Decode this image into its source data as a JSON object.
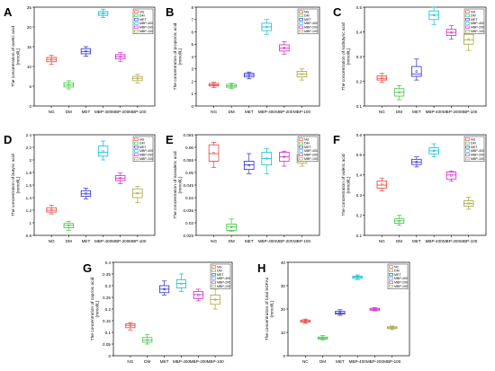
{
  "chart_data": [
    {
      "type": "box",
      "panel": "A",
      "ylabel": "The concentration of acetic acid (mmol/L)",
      "categories": [
        "NG",
        "DM",
        "MET",
        "MBP-400",
        "MBP-200",
        "MBP-100"
      ],
      "legend": [
        "NG",
        "DM",
        "MET",
        "MBP-400",
        "MBP-200",
        "MBP-100"
      ],
      "ylim": [
        0,
        25
      ],
      "yticks": [
        0,
        5,
        10,
        15,
        20,
        25
      ],
      "boxes": [
        {
          "min": 10.5,
          "q1": 11.2,
          "median": 11.8,
          "q3": 12.3,
          "max": 12.8
        },
        {
          "min": 4.3,
          "q1": 4.8,
          "median": 5.3,
          "q3": 5.9,
          "max": 6.4
        },
        {
          "min": 12.6,
          "q1": 13.2,
          "median": 13.8,
          "q3": 14.5,
          "max": 15.0
        },
        {
          "min": 22.4,
          "q1": 22.9,
          "median": 23.4,
          "q3": 23.9,
          "max": 24.5
        },
        {
          "min": 11.3,
          "q1": 11.9,
          "median": 12.5,
          "q3": 13.0,
          "max": 13.5
        },
        {
          "min": 5.8,
          "q1": 6.4,
          "median": 7.0,
          "q3": 7.5,
          "max": 8.0
        }
      ]
    },
    {
      "type": "box",
      "panel": "B",
      "ylabel": "The concentration of propionic acid (mmol/L)",
      "categories": [
        "NG",
        "DM",
        "MET",
        "MBP-400",
        "MBP-200",
        "MBP-100"
      ],
      "legend": [
        "NG",
        "DM",
        "MET",
        "MBP-400",
        "MBP-200",
        "MBP-100"
      ],
      "ylim": [
        0,
        8
      ],
      "yticks": [
        0,
        1,
        2,
        3,
        4,
        5,
        6,
        7,
        8
      ],
      "boxes": [
        {
          "min": 1.5,
          "q1": 1.62,
          "median": 1.72,
          "q3": 1.82,
          "max": 1.92
        },
        {
          "min": 1.4,
          "q1": 1.52,
          "median": 1.62,
          "q3": 1.75,
          "max": 1.85
        },
        {
          "min": 2.2,
          "q1": 2.35,
          "median": 2.5,
          "q3": 2.65,
          "max": 2.75
        },
        {
          "min": 5.8,
          "q1": 6.1,
          "median": 6.4,
          "q3": 6.7,
          "max": 7.0
        },
        {
          "min": 4.2,
          "q1": 4.45,
          "median": 4.7,
          "q3": 4.95,
          "max": 5.2
        },
        {
          "min": 2.1,
          "q1": 2.35,
          "median": 2.6,
          "q3": 2.8,
          "max": 3.0
        }
      ]
    },
    {
      "type": "box",
      "panel": "C",
      "ylabel": "The concentration of isobutyric acid (mmol/L)",
      "categories": [
        "NG",
        "DM",
        "MET",
        "MBP-400",
        "MBP-200",
        "MBP-100"
      ],
      "legend": [
        "NG",
        "DM",
        "MET",
        "MBP-400",
        "MBP-200",
        "MBP-100"
      ],
      "ylim": [
        0.1,
        0.5
      ],
      "yticks": [
        0.1,
        0.2,
        0.3,
        0.4,
        0.5
      ],
      "boxes": [
        {
          "min": 0.195,
          "q1": 0.205,
          "median": 0.212,
          "q3": 0.222,
          "max": 0.232
        },
        {
          "min": 0.125,
          "q1": 0.14,
          "median": 0.155,
          "q3": 0.17,
          "max": 0.182
        },
        {
          "min": 0.205,
          "q1": 0.22,
          "median": 0.23,
          "q3": 0.26,
          "max": 0.29
        },
        {
          "min": 0.43,
          "q1": 0.45,
          "median": 0.468,
          "q3": 0.485,
          "max": 0.5
        },
        {
          "min": 0.37,
          "q1": 0.385,
          "median": 0.398,
          "q3": 0.41,
          "max": 0.425
        },
        {
          "min": 0.325,
          "q1": 0.35,
          "median": 0.368,
          "q3": 0.39,
          "max": 0.41
        }
      ]
    },
    {
      "type": "box",
      "panel": "D",
      "ylabel": "The concentration of butyric acid (mmol/L)",
      "categories": [
        "NG",
        "DM",
        "MET",
        "MBP-400",
        "MBP-200",
        "MBP-100"
      ],
      "legend": [
        "NG",
        "DM",
        "MET",
        "MBP-400",
        "MBP-200",
        "MBP-100"
      ],
      "ylim": [
        0.8,
        2.4
      ],
      "yticks": [
        0.8,
        1.0,
        1.2,
        1.4,
        1.6,
        1.8,
        2.0,
        2.2,
        2.4
      ],
      "boxes": [
        {
          "min": 1.14,
          "q1": 1.17,
          "median": 1.2,
          "q3": 1.24,
          "max": 1.28
        },
        {
          "min": 0.88,
          "q1": 0.92,
          "median": 0.96,
          "q3": 0.99,
          "max": 1.02
        },
        {
          "min": 1.38,
          "q1": 1.42,
          "median": 1.46,
          "q3": 1.51,
          "max": 1.55
        },
        {
          "min": 2.0,
          "q1": 2.06,
          "median": 2.12,
          "q3": 2.22,
          "max": 2.3
        },
        {
          "min": 1.62,
          "q1": 1.67,
          "median": 1.71,
          "q3": 1.75,
          "max": 1.79
        },
        {
          "min": 1.32,
          "q1": 1.4,
          "median": 1.47,
          "q3": 1.54,
          "max": 1.58
        }
      ]
    },
    {
      "type": "box",
      "panel": "E",
      "ylabel": "The concentration of isovaleric acid (mmol/L)",
      "categories": [
        "NG",
        "DM",
        "MET",
        "MBP-400",
        "MBP-200",
        "MBP-100"
      ],
      "legend": [
        "NG",
        "DM",
        "MET",
        "MBP-400",
        "MBP-200",
        "MBP-100"
      ],
      "ylim": [
        0.025,
        0.065
      ],
      "yticks": [
        0.025,
        0.03,
        0.035,
        0.04,
        0.045,
        0.05,
        0.055,
        0.06,
        0.065
      ],
      "boxes": [
        {
          "min": 0.052,
          "q1": 0.0545,
          "median": 0.0575,
          "q3": 0.061,
          "max": 0.062
        },
        {
          "min": 0.0265,
          "q1": 0.027,
          "median": 0.0283,
          "q3": 0.0295,
          "max": 0.0315
        },
        {
          "min": 0.0495,
          "q1": 0.0512,
          "median": 0.053,
          "q3": 0.0545,
          "max": 0.0575
        },
        {
          "min": 0.0495,
          "q1": 0.053,
          "median": 0.0555,
          "q3": 0.058,
          "max": 0.0595
        },
        {
          "min": 0.0525,
          "q1": 0.0545,
          "median": 0.0562,
          "q3": 0.058,
          "max": 0.0585
        },
        {
          "min": 0.0525,
          "q1": 0.0538,
          "median": 0.0553,
          "q3": 0.057,
          "max": 0.058
        }
      ]
    },
    {
      "type": "box",
      "panel": "F",
      "ylabel": "The concentration of valeric acid (mmol/L)",
      "categories": [
        "NG",
        "DM",
        "MET",
        "MBP-400",
        "MBP-200",
        "MBP-100"
      ],
      "legend": [
        "NG",
        "DM",
        "MET",
        "MBP-400",
        "MBP-200",
        "MBP-100"
      ],
      "ylim": [
        0.1,
        0.6
      ],
      "yticks": [
        0.1,
        0.2,
        0.3,
        0.4,
        0.5,
        0.6
      ],
      "boxes": [
        {
          "min": 0.32,
          "q1": 0.335,
          "median": 0.35,
          "q3": 0.37,
          "max": 0.385
        },
        {
          "min": 0.15,
          "q1": 0.16,
          "median": 0.172,
          "q3": 0.182,
          "max": 0.2
        },
        {
          "min": 0.44,
          "q1": 0.452,
          "median": 0.465,
          "q3": 0.478,
          "max": 0.49
        },
        {
          "min": 0.49,
          "q1": 0.505,
          "median": 0.52,
          "q3": 0.535,
          "max": 0.555
        },
        {
          "min": 0.37,
          "q1": 0.38,
          "median": 0.4,
          "q3": 0.415,
          "max": 0.42
        },
        {
          "min": 0.23,
          "q1": 0.245,
          "median": 0.258,
          "q3": 0.272,
          "max": 0.29
        }
      ]
    },
    {
      "type": "box",
      "panel": "G",
      "ylabel": "The concentration of caproic acid (mmol/L)",
      "categories": [
        "NG",
        "DM",
        "MET",
        "MBP-400",
        "MBP-200",
        "MBP-100"
      ],
      "legend": [
        "NG",
        "DM",
        "MET",
        "MBP-400",
        "MBP-200",
        "MBP-100"
      ],
      "ylim": [
        0,
        0.4
      ],
      "yticks": [
        0,
        0.05,
        0.1,
        0.15,
        0.2,
        0.25,
        0.3,
        0.35,
        0.4
      ],
      "boxes": [
        {
          "min": 0.11,
          "q1": 0.12,
          "median": 0.13,
          "q3": 0.137,
          "max": 0.142
        },
        {
          "min": 0.05,
          "q1": 0.058,
          "median": 0.068,
          "q3": 0.078,
          "max": 0.09
        },
        {
          "min": 0.26,
          "q1": 0.27,
          "median": 0.285,
          "q3": 0.3,
          "max": 0.32
        },
        {
          "min": 0.275,
          "q1": 0.29,
          "median": 0.31,
          "q3": 0.325,
          "max": 0.35
        },
        {
          "min": 0.235,
          "q1": 0.245,
          "median": 0.262,
          "q3": 0.275,
          "max": 0.285
        },
        {
          "min": 0.2,
          "q1": 0.22,
          "median": 0.24,
          "q3": 0.26,
          "max": 0.285
        }
      ]
    },
    {
      "type": "box",
      "panel": "H",
      "ylabel": "The concentration of total SCFAs (mmol/L)",
      "categories": [
        "NC",
        "DM",
        "MET",
        "MBP-400",
        "MBP-200",
        "MBP-100"
      ],
      "legend": [
        "NC",
        "DM",
        "MET",
        "MBP-400",
        "MBP-200",
        "MBP-100"
      ],
      "ylim": [
        0,
        40
      ],
      "yticks": [
        0,
        10,
        20,
        30,
        40
      ],
      "boxes": [
        {
          "min": 13.9,
          "q1": 14.3,
          "median": 14.8,
          "q3": 15.3,
          "max": 15.7
        },
        {
          "min": 6.8,
          "q1": 7.2,
          "median": 7.6,
          "q3": 8.0,
          "max": 8.6
        },
        {
          "min": 17.3,
          "q1": 17.8,
          "median": 18.3,
          "q3": 19.0,
          "max": 19.7
        },
        {
          "min": 32.6,
          "q1": 33.1,
          "median": 33.6,
          "q3": 34.1,
          "max": 34.6
        },
        {
          "min": 19.2,
          "q1": 19.5,
          "median": 19.9,
          "q3": 20.3,
          "max": 20.6
        },
        {
          "min": 11.2,
          "q1": 11.6,
          "median": 12.0,
          "q3": 12.4,
          "max": 12.7
        }
      ]
    }
  ],
  "colors": [
    "#e8413c",
    "#3fc43f",
    "#2b2bd6",
    "#12bdd6",
    "#d224c8",
    "#a9a53a"
  ]
}
